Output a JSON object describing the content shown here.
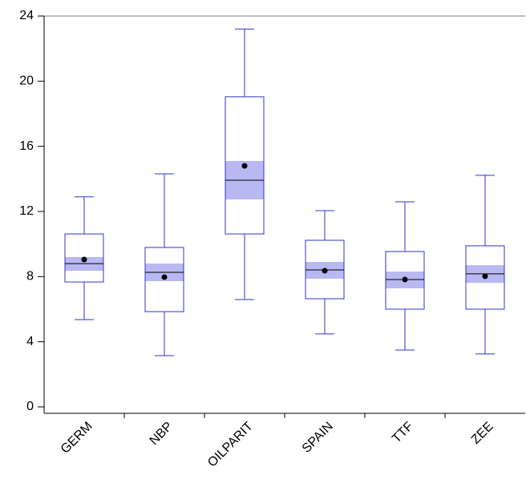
{
  "chart_data": {
    "type": "box",
    "categories": [
      "GERM",
      "NBP",
      "OILPARIT",
      "SPAIN",
      "TTF",
      "ZEE"
    ],
    "box_color": "#3333cc",
    "notch_color": "#b8b8f2",
    "mean_color": "#000000",
    "ylim": [
      0,
      24
    ],
    "yticks": [
      0,
      4,
      8,
      12,
      16,
      20,
      24
    ],
    "boxes": [
      {
        "whisker_low": 5.36,
        "q1": 7.67,
        "median": 8.8,
        "q3": 10.62,
        "whisker_high": 12.9,
        "mean": 9.05,
        "notch_low": 8.36,
        "notch_high": 9.2
      },
      {
        "whisker_low": 3.15,
        "q1": 5.85,
        "median": 8.26,
        "q3": 9.79,
        "whisker_high": 14.31,
        "mean": 7.97,
        "notch_low": 7.72,
        "notch_high": 8.8
      },
      {
        "whisker_low": 6.59,
        "q1": 10.62,
        "median": 13.92,
        "q3": 19.04,
        "whisker_high": 23.2,
        "mean": 14.8,
        "notch_low": 12.74,
        "notch_high": 15.1
      },
      {
        "whisker_low": 4.48,
        "q1": 6.64,
        "median": 8.41,
        "q3": 10.23,
        "whisker_high": 12.05,
        "mean": 8.36,
        "notch_low": 7.87,
        "notch_high": 8.9
      },
      {
        "whisker_low": 3.49,
        "q1": 6.0,
        "median": 7.82,
        "q3": 9.54,
        "whisker_high": 12.59,
        "mean": 7.82,
        "notch_low": 7.28,
        "notch_high": 8.31
      },
      {
        "whisker_low": 3.25,
        "q1": 6.0,
        "median": 8.17,
        "q3": 9.89,
        "whisker_high": 14.22,
        "mean": 8.02,
        "notch_low": 7.62,
        "notch_high": 8.7
      }
    ]
  }
}
